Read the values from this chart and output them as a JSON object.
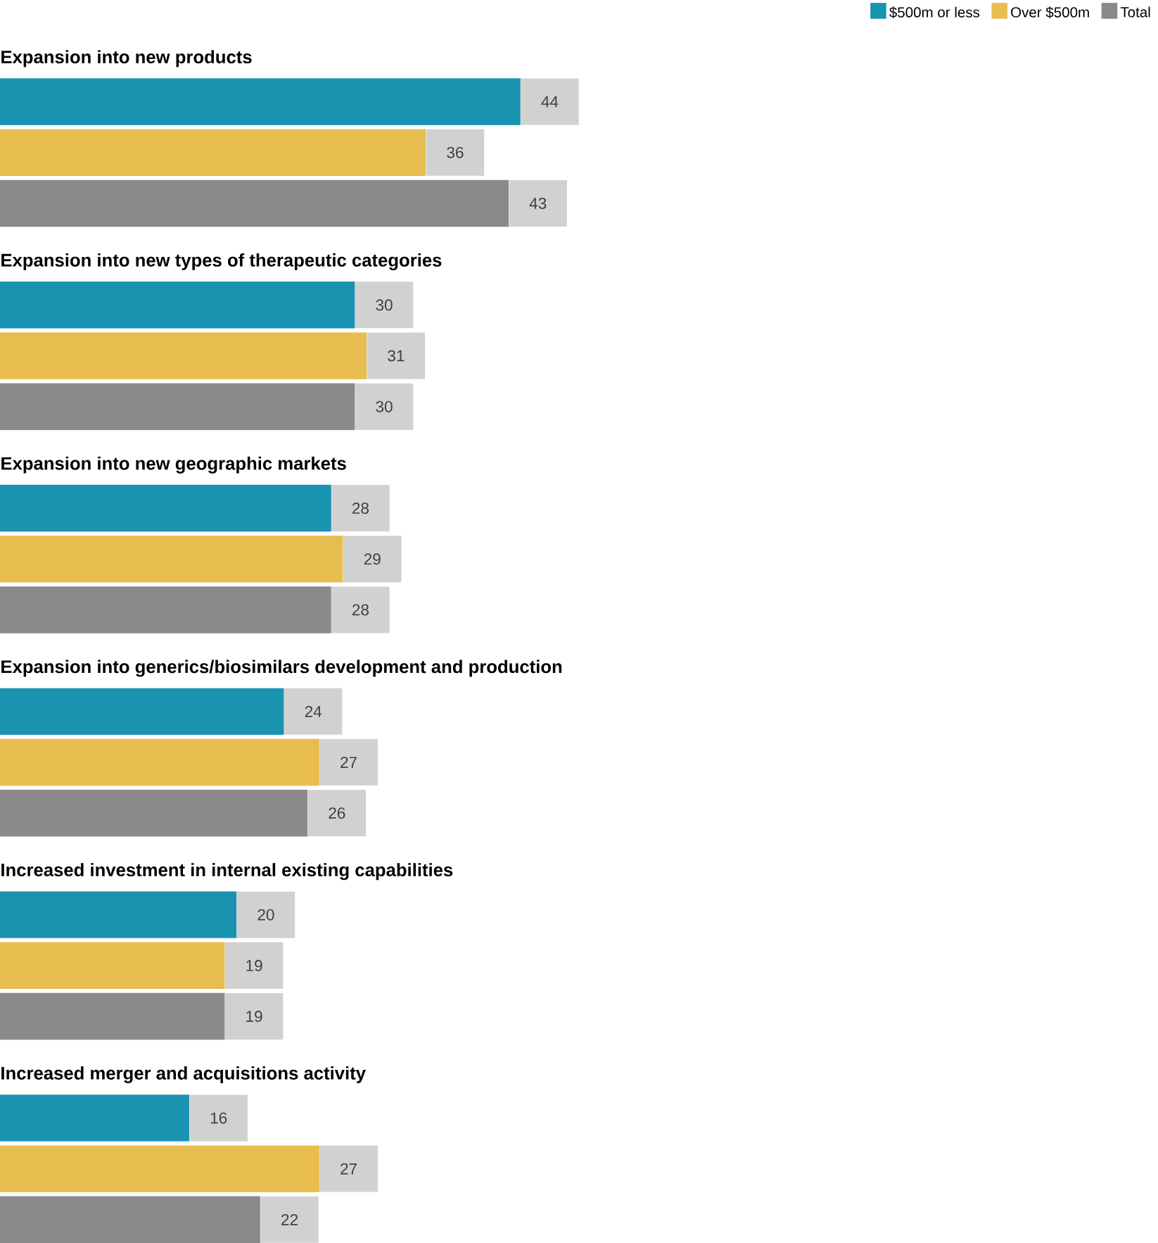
{
  "chart_data": {
    "type": "bar",
    "orientation": "horizontal",
    "data_labels": true,
    "legend": "top right",
    "categories": [
      "Expansion into new products",
      "Expansion into new types of therapeutic categories",
      "Expansion into new geographic markets",
      "Expansion into generics/biosimilars development and production",
      "Increased investment in internal existing capabilities",
      "Increased merger and acquisitions activity"
    ],
    "series": [
      {
        "name": "$500m or less",
        "color": "#1a93b0",
        "values": [
          44,
          30,
          28,
          24,
          20,
          16
        ]
      },
      {
        "name": "Over $500m",
        "color": "#e8bd50",
        "values": [
          36,
          31,
          29,
          27,
          19,
          27
        ]
      },
      {
        "name": "Total",
        "color": "#8a8a8a",
        "values": [
          43,
          30,
          28,
          26,
          19,
          22
        ]
      }
    ]
  }
}
